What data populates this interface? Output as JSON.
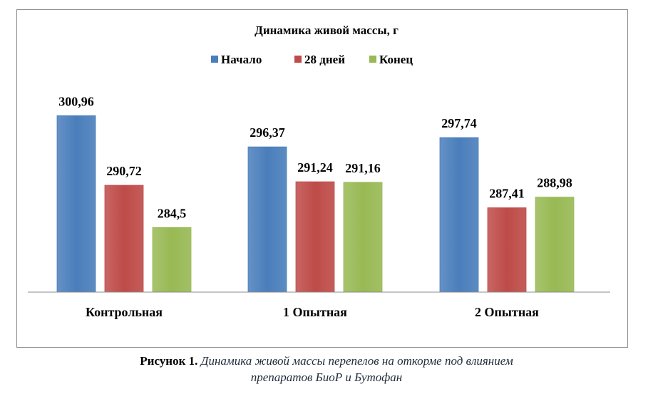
{
  "chart_data": {
    "type": "bar",
    "title": "Динамика живой массы, г",
    "categories": [
      "Контрольная",
      "1 Опытная",
      "2 Опытная"
    ],
    "series": [
      {
        "name": "Начало",
        "color": "#4a7ebb",
        "values": [
          300.96,
          296.37,
          297.74
        ],
        "labels": [
          "300,96",
          "296,37",
          "297,74"
        ]
      },
      {
        "name": "28 дней",
        "color": "#be4b48",
        "values": [
          290.72,
          291.24,
          287.41
        ],
        "labels": [
          "290,72",
          "291,24",
          "287,41"
        ]
      },
      {
        "name": "Конец",
        "color": "#98b954",
        "values": [
          284.5,
          291.16,
          288.98
        ],
        "labels": [
          "284,5",
          "291,16",
          "288,98"
        ]
      }
    ],
    "ylim": [
      275,
      305
    ],
    "grid": false,
    "legend_position": "top"
  },
  "caption": {
    "label": "Рисунок 1.",
    "text_line1": "Динамика живой массы перепелов на откорме под влиянием",
    "text_line2": "препаратов БиоР и Бутофан"
  }
}
